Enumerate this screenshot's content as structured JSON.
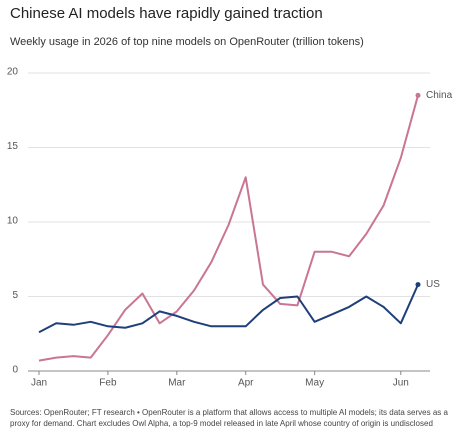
{
  "chart_data": {
    "type": "line",
    "title": "Chinese AI models have rapidly gained traction",
    "subtitle": "Weekly usage in 2026 of top nine models on OpenRouter (trillion tokens)",
    "categories": [
      "Jan",
      null,
      null,
      null,
      "Feb",
      null,
      null,
      null,
      "Mar",
      null,
      null,
      null,
      "Apr",
      null,
      null,
      null,
      "May",
      null,
      null,
      null,
      null,
      "Jun",
      null
    ],
    "series": [
      {
        "name": "China",
        "color": "#c97593",
        "values": [
          0.7,
          0.9,
          1.0,
          0.9,
          2.4,
          4.1,
          5.2,
          3.2,
          4.0,
          5.4,
          7.3,
          9.8,
          13.0,
          5.8,
          4.5,
          4.4,
          8.0,
          8.0,
          7.7,
          9.2,
          11.1,
          14.3,
          18.5
        ]
      },
      {
        "name": "US",
        "color": "#1f3f7a",
        "values": [
          2.6,
          3.2,
          3.1,
          3.3,
          3.0,
          2.9,
          3.2,
          4.0,
          3.7,
          3.3,
          3.0,
          3.0,
          3.0,
          4.1,
          4.9,
          5.0,
          3.3,
          3.8,
          4.3,
          5.0,
          4.3,
          3.2,
          5.8
        ]
      }
    ],
    "ylim": [
      0,
      20
    ],
    "yticks": [
      0,
      5,
      10,
      15,
      20
    ],
    "grid": true,
    "source": "Sources: OpenRouter; FT research • OpenRouter is a platform that allows access to multiple AI models; its data serves as a proxy for demand. Chart excludes Owl Alpha, a top-9 model released in late April whose country of origin is undisclosed"
  }
}
